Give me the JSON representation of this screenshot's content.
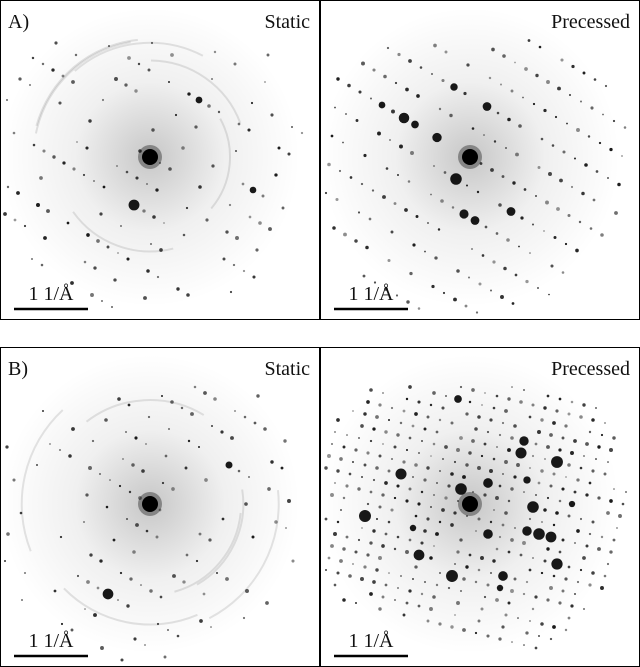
{
  "panels": [
    {
      "label": "A)",
      "images": [
        {
          "title": "Static",
          "scale_bar": "1 1/Å"
        },
        {
          "title": "Precessed",
          "scale_bar": "1 1/Å"
        }
      ]
    },
    {
      "label": "B)",
      "images": [
        {
          "title": "Static",
          "scale_bar": "1 1/Å"
        },
        {
          "title": "Precessed",
          "scale_bar": "1 1/Å"
        }
      ]
    }
  ]
}
